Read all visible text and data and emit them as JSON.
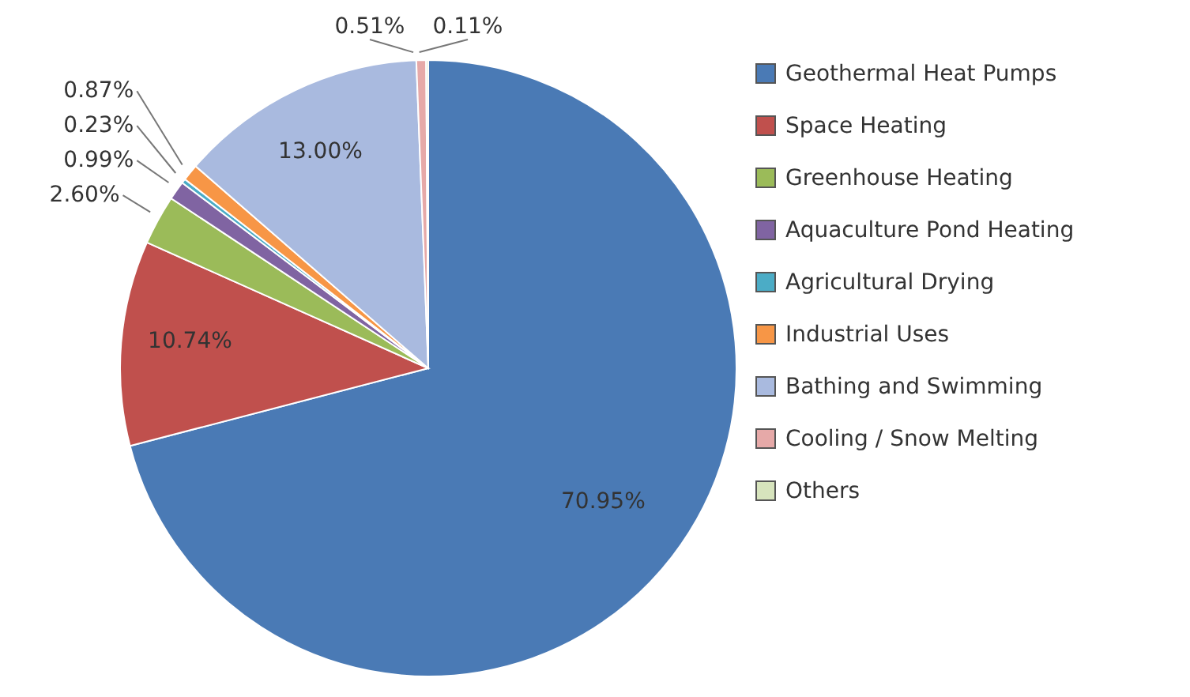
{
  "chart_data": {
    "type": "pie",
    "categories": [
      "Geothermal Heat Pumps",
      "Space Heating",
      "Greenhouse Heating",
      "Aquaculture Pond Heating",
      "Agricultural Drying",
      "Industrial Uses",
      "Bathing and Swimming",
      "Cooling / Snow Melting",
      "Others"
    ],
    "values": [
      70.95,
      10.74,
      2.6,
      0.99,
      0.23,
      0.87,
      13.0,
      0.51,
      0.11
    ],
    "colors": [
      "#4a7ab5",
      "#c0504d",
      "#9bbb59",
      "#8064a2",
      "#4bacc6",
      "#f79646",
      "#a9badf",
      "#e6a9a8",
      "#d7e4bd"
    ],
    "value_labels": [
      "70.95%",
      "10.74%",
      "2.60%",
      "0.99%",
      "0.23%",
      "0.87%",
      "13.00%",
      "0.51%",
      "0.11%"
    ],
    "legend": "right"
  }
}
